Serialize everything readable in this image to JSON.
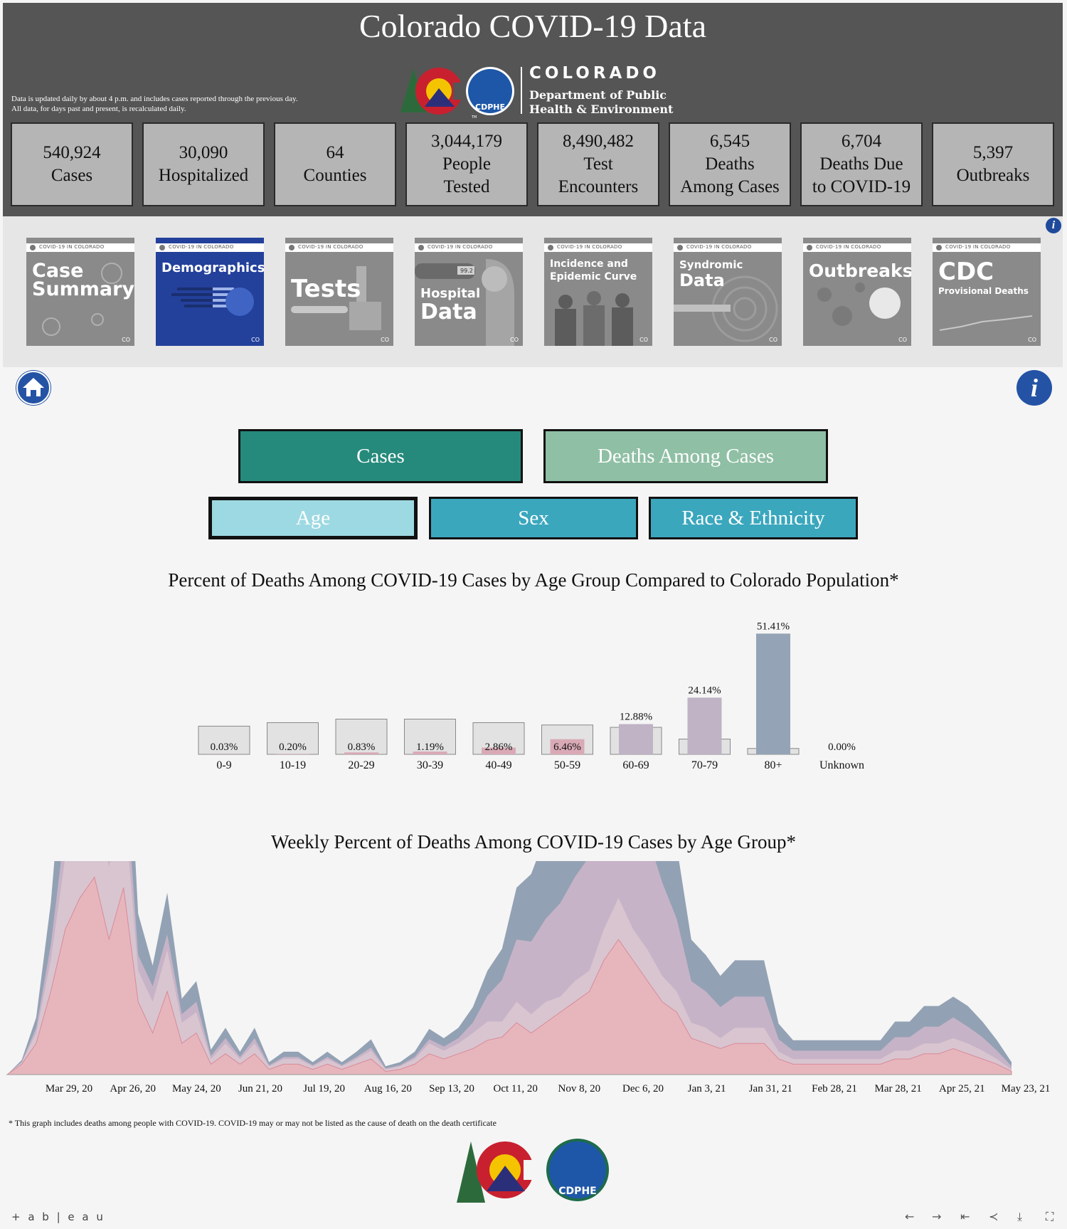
{
  "header": {
    "title": "Colorado COVID-19 Data",
    "note_line1": "Data is updated daily by about 4 p.m. and includes cases reported through the previous day.",
    "note_line2": "All data, for days past and present, is recalculated daily.",
    "logo": {
      "org_name": "COLORADO",
      "dept_line1": "Department of Public",
      "dept_line2": "Health & Environment",
      "badge": "CDPHE",
      "tm": "TM"
    }
  },
  "stats": [
    {
      "value": "540,924",
      "label1": "Cases",
      "label2": ""
    },
    {
      "value": "30,090",
      "label1": "Hospitalized",
      "label2": ""
    },
    {
      "value": "64",
      "label1": "Counties",
      "label2": ""
    },
    {
      "value": "3,044,179",
      "label1": "People",
      "label2": "Tested"
    },
    {
      "value": "8,490,482",
      "label1": "Test",
      "label2": "Encounters"
    },
    {
      "value": "6,545",
      "label1": "Deaths",
      "label2": "Among Cases"
    },
    {
      "value": "6,704",
      "label1": "Deaths Due",
      "label2": "to COVID-19"
    },
    {
      "value": "5,397",
      "label1": "Outbreaks",
      "label2": ""
    }
  ],
  "tiles": {
    "banner": "COVID-19 IN COLORADO",
    "mini": "CO",
    "items": [
      {
        "line1": "Case",
        "line2": "Summary",
        "sub": ""
      },
      {
        "line1": "Demographics",
        "line2": "",
        "sub": ""
      },
      {
        "line1": "Tests",
        "line2": "",
        "sub": ""
      },
      {
        "line1": "Hospital",
        "line2": "Data",
        "sub": "99.2"
      },
      {
        "line1": "Incidence and",
        "line2": "Epidemic Curve",
        "sub": ""
      },
      {
        "line1": "Syndromic",
        "line2": "Data",
        "sub": ""
      },
      {
        "line1": "Outbreaks",
        "line2": "",
        "sub": ""
      },
      {
        "line1": "CDC",
        "line2": "Provisional Deaths",
        "sub": ""
      }
    ]
  },
  "icons": {
    "info": "i"
  },
  "buttons": {
    "cases": "Cases",
    "deaths_among_cases": "Deaths Among Cases",
    "age": "Age",
    "sex": "Sex",
    "race": "Race & Ethnicity"
  },
  "colors": {
    "cases_btn": "#258a7c",
    "deaths_btn": "#8fbfa4",
    "age_btn": "#9dd9e2",
    "tab_btn": "#3aa7bd",
    "bar_80": "#94a3b5",
    "bar_70": "#bfb3c5",
    "bar_60": "#bfb3c5",
    "bar_pink": "#d9aab6",
    "pop_bar": "#e2e2e2"
  },
  "chart_data": [
    {
      "type": "bar",
      "title": "Percent of Deaths Among COVID-19 Cases by Age Group Compared to Colorado Population*",
      "categories": [
        "0-9",
        "10-19",
        "20-29",
        "30-39",
        "40-49",
        "50-59",
        "60-69",
        "70-79",
        "80+",
        "Unknown"
      ],
      "data_labels": [
        "0.03%",
        "0.20%",
        "0.83%",
        "1.19%",
        "2.86%",
        "6.46%",
        "12.88%",
        "24.14%",
        "51.41%",
        "0.00%"
      ],
      "series": [
        {
          "name": "",
          "values": [
            0.03,
            0.2,
            0.83,
            1.19,
            2.86,
            6.46,
            12.88,
            24.14,
            51.41,
            0.0
          ]
        },
        {
          "name": "",
          "values": [
            12.0,
            13.5,
            15.0,
            15.0,
            13.5,
            12.5,
            11.5,
            6.5,
            2.5,
            0
          ]
        }
      ],
      "ylim": [
        0,
        55
      ]
    },
    {
      "type": "area",
      "title": "Weekly Percent of Deaths Among COVID-19 Cases by Age Group*",
      "x_tick_labels": [
        "Mar 29, 20",
        "Apr 26, 20",
        "May 24, 20",
        "Jun 21, 20",
        "Jul 19, 20",
        "Aug 16, 20",
        "Sep 13, 20",
        "Oct 11, 20",
        "Nov 8, 20",
        "Dec 6, 20",
        "Jan 3, 21",
        "Jan 31, 21",
        "Feb 28, 21",
        "Mar 28, 21",
        "Apr 25, 21",
        "May 23, 21"
      ],
      "series": [
        {
          "name": "",
          "values": [
            0,
            1,
            3,
            8,
            14,
            17,
            19,
            13,
            18,
            7,
            4,
            8,
            3,
            4,
            1,
            2,
            1,
            2,
            0.5,
            1,
            1,
            0.5,
            1,
            0.5,
            1,
            1.5,
            0.3,
            0.5,
            1,
            2,
            1.5,
            2,
            2.5,
            3.3,
            3.6,
            5,
            4,
            5,
            6,
            7,
            8,
            11,
            13,
            11,
            9,
            7,
            6,
            3.5,
            3,
            2.5,
            3,
            3,
            3,
            1.5,
            1,
            1,
            1,
            1,
            1,
            1,
            1,
            1.5,
            1.5,
            2,
            2,
            2.5,
            2,
            1.5,
            1,
            0.3
          ]
        },
        {
          "name": "",
          "values": [
            0,
            0.2,
            1,
            3,
            7,
            10,
            10,
            7,
            9,
            3,
            3,
            4,
            2,
            2,
            0.5,
            1,
            0.5,
            1,
            0.3,
            0.5,
            0.5,
            0.3,
            0.5,
            0.3,
            0.5,
            0.8,
            0.2,
            0.3,
            0.5,
            1,
            0.8,
            1,
            1.5,
            1.8,
            1.5,
            2,
            1.8,
            2,
            1.5,
            2,
            2,
            3,
            4,
            3,
            3,
            2.5,
            2,
            1.5,
            1.5,
            1,
            1.5,
            1.5,
            1.5,
            0.7,
            0.5,
            0.5,
            0.5,
            0.5,
            0.5,
            0.5,
            0.5,
            0.8,
            0.8,
            1,
            1,
            1,
            1,
            0.8,
            0.5,
            0.2
          ]
        },
        {
          "name": "",
          "values": [
            0,
            0,
            0.5,
            1.5,
            3,
            5,
            6,
            4,
            4.5,
            1.5,
            1.5,
            1.5,
            0.8,
            1,
            0.3,
            0.5,
            0.2,
            0.5,
            0.1,
            0.2,
            0.2,
            0.1,
            0.2,
            0.1,
            0.2,
            0.3,
            0.1,
            0.1,
            0.2,
            0.4,
            0.4,
            0.5,
            1,
            2.5,
            4,
            6,
            7,
            8,
            9,
            10,
            11,
            13,
            15,
            13,
            11,
            9,
            7,
            4,
            3.5,
            3,
            3,
            3,
            3,
            1.2,
            0.8,
            0.8,
            0.8,
            0.8,
            0.8,
            0.8,
            0.8,
            1.3,
            1.3,
            1.6,
            1.6,
            2,
            1.6,
            1.3,
            0.8,
            0.3
          ]
        },
        {
          "name": "",
          "values": [
            0,
            0.2,
            1,
            4,
            9,
            11,
            12,
            8,
            11,
            4,
            2,
            4,
            1.5,
            2,
            0.6,
            1,
            0.5,
            1,
            0.3,
            0.5,
            0.5,
            0.3,
            0.5,
            0.3,
            0.5,
            0.8,
            0.2,
            0.3,
            0.5,
            1,
            0.8,
            1,
            1.5,
            2.4,
            3,
            5,
            6.5,
            8,
            11,
            14,
            16,
            19,
            20,
            16,
            13,
            10,
            7,
            4,
            3.5,
            3,
            3.5,
            3.5,
            3.5,
            1.5,
            1,
            1,
            1,
            1,
            1,
            1,
            1,
            1.5,
            1.5,
            2,
            2,
            2,
            2,
            1.5,
            1,
            0.4
          ]
        }
      ]
    }
  ],
  "footnote": "* This graph includes deaths among people with COVID-19.  COVID-19 may or may not be listed as the cause of death on the death certificate",
  "bottom_logo": {
    "badge": "CDPHE"
  },
  "tableau": {
    "brand": "+ a b | e a u"
  },
  "toolbar": {
    "back": "←",
    "forward": "→",
    "first": "⇤",
    "share": "≺",
    "download": "⤓",
    "fullscreen": "⛶"
  }
}
